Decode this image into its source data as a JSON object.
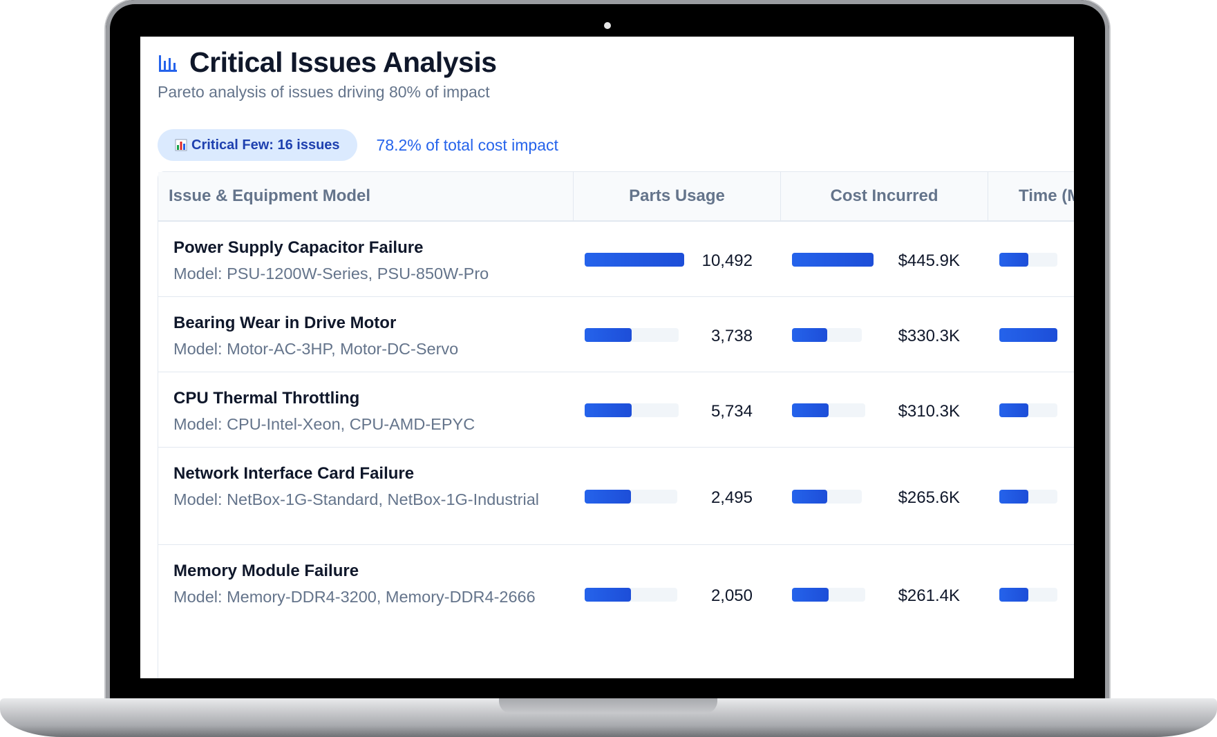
{
  "header": {
    "title": "Critical Issues Analysis",
    "subtitle": "Pareto analysis of issues driving 80% of impact"
  },
  "summary": {
    "badge_label": "Critical Few: 16 issues",
    "impact_text": "78.2% of total cost impact"
  },
  "colors": {
    "accent": "#2563eb",
    "badge_bg": "#dbeafe",
    "bar_track": "#f1f5f9"
  },
  "table": {
    "columns": [
      "Issue & Equipment Model",
      "Parts Usage",
      "Cost Incurred",
      "Time (M"
    ],
    "rows": [
      {
        "issue": "Power Supply Capacitor Failure",
        "model": "Model: PSU-1200W-Series, PSU-850W-Pro",
        "parts": "10,492",
        "parts_fill": 1.0,
        "cost": "$445.9K",
        "cost_fill": 1.0,
        "time_fill": 0.5
      },
      {
        "issue": "Bearing Wear in Drive Motor",
        "model": "Model: Motor-AC-3HP, Motor-DC-Servo",
        "parts": "3,738",
        "parts_fill": 0.5,
        "cost": "$330.3K",
        "cost_fill": 0.5,
        "time_fill": 1.0
      },
      {
        "issue": "CPU Thermal Throttling",
        "model": "Model: CPU-Intel-Xeon, CPU-AMD-EPYC",
        "parts": "5,734",
        "parts_fill": 0.5,
        "cost": "$310.3K",
        "cost_fill": 0.5,
        "time_fill": 0.5
      },
      {
        "issue": "Network Interface Card Failure",
        "model": "Model: NetBox-1G-Standard, NetBox-1G-Industrial",
        "parts": "2,495",
        "parts_fill": 0.5,
        "cost": "$265.6K",
        "cost_fill": 0.5,
        "time_fill": 0.5
      },
      {
        "issue": "Memory Module Failure",
        "model": "Model: Memory-DDR4-3200, Memory-DDR4-2666",
        "parts": "2,050",
        "parts_fill": 0.5,
        "cost": "$261.4K",
        "cost_fill": 0.5,
        "time_fill": 0.5
      }
    ]
  }
}
